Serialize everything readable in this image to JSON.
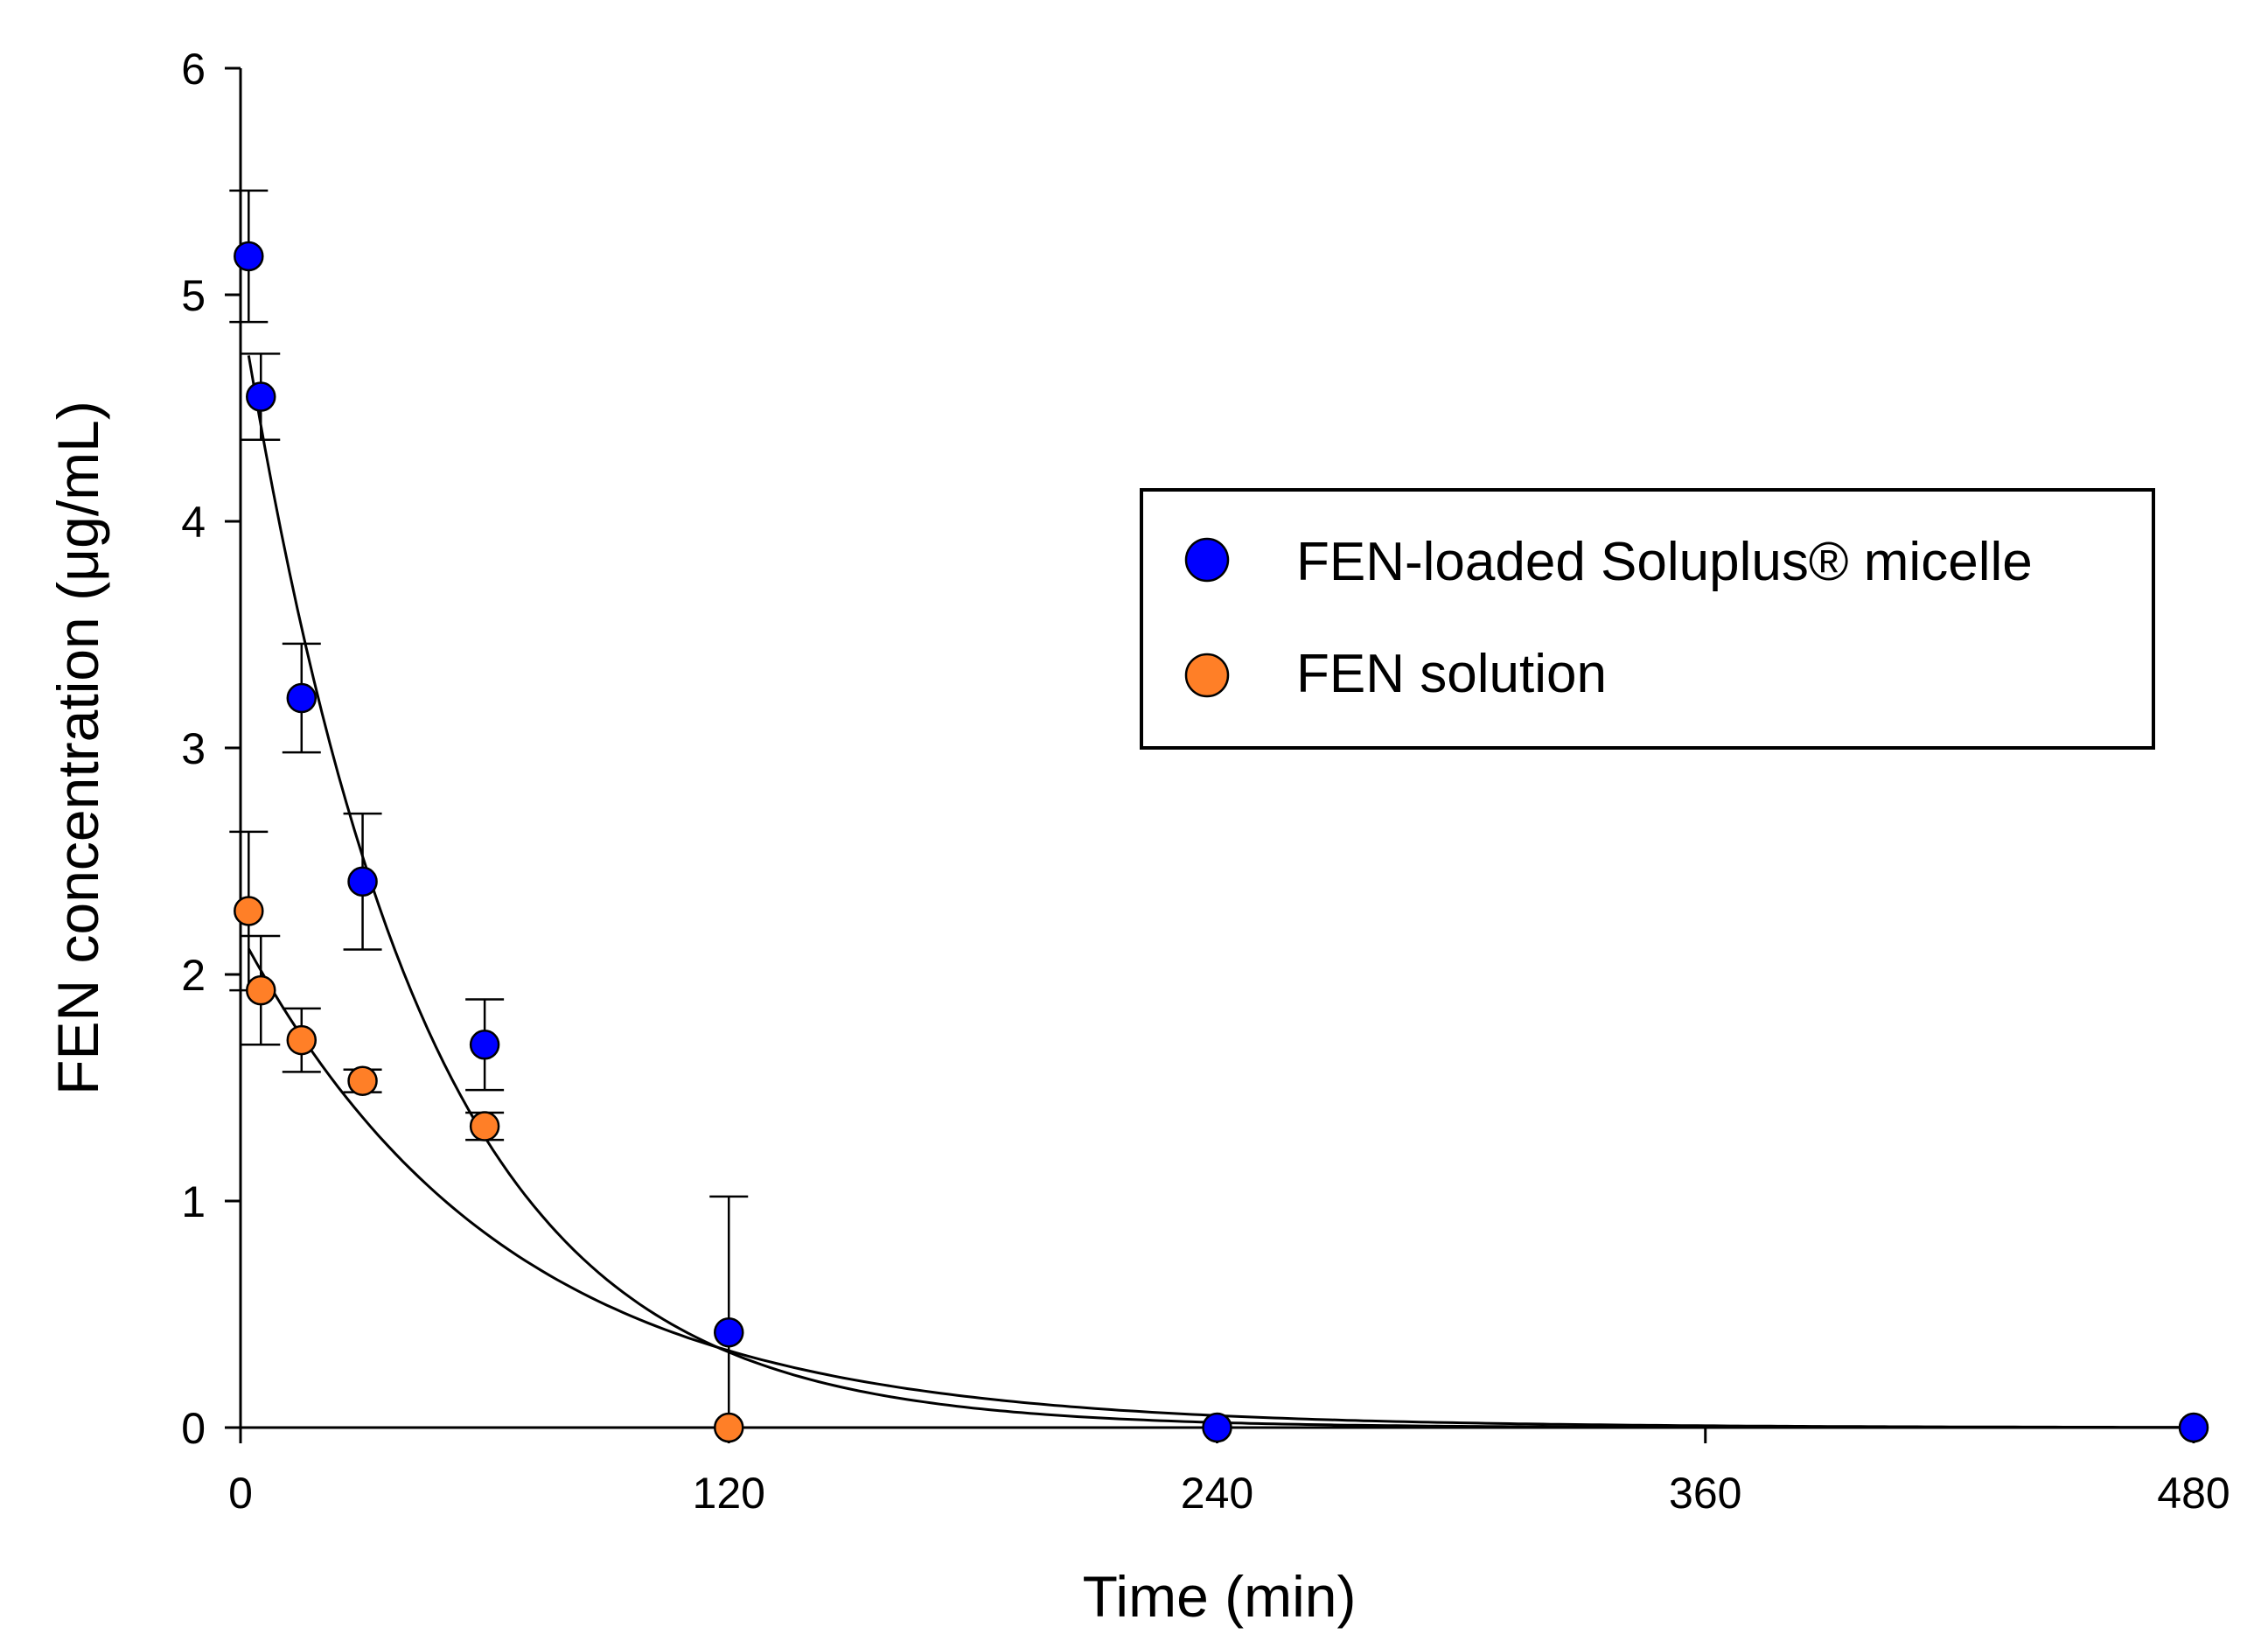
{
  "chart_data": {
    "type": "scatter",
    "title": "",
    "xlabel": "Time (min)",
    "ylabel": "FEN concentration (μg/mL)",
    "xlim": [
      0,
      480
    ],
    "ylim": [
      0,
      6
    ],
    "xticks": [
      0,
      120,
      240,
      360,
      480
    ],
    "yticks": [
      0,
      1,
      2,
      3,
      4,
      5,
      6
    ],
    "xtick_labels": [
      "0",
      "120",
      "240",
      "360",
      "480"
    ],
    "ytick_labels": [
      "0",
      "1",
      "2",
      "3",
      "4",
      "5",
      "6"
    ],
    "grid": false,
    "legend_position": "upper-right",
    "series": [
      {
        "name": "FEN-loaded Soluplus® micelle",
        "color": "#0000ff",
        "marker": "circle",
        "x": [
          2,
          5,
          15,
          30,
          60,
          120,
          240,
          480
        ],
        "y": [
          5.17,
          4.55,
          3.22,
          2.41,
          1.69,
          0.42,
          0.0,
          0.0
        ],
        "error_upper": [
          0.29,
          0.19,
          0.24,
          0.3,
          0.2,
          0.6,
          0,
          0
        ],
        "error_lower": [
          0.29,
          0.19,
          0.24,
          0.3,
          0.2,
          0.42,
          0,
          0
        ],
        "fit": {
          "model": "exponential decay",
          "a": 4.95,
          "k": 0.0225
        }
      },
      {
        "name": "FEN solution",
        "color": "#ff7f27",
        "marker": "circle",
        "x": [
          2,
          5,
          15,
          30,
          60,
          120
        ],
        "y": [
          2.28,
          1.93,
          1.71,
          1.53,
          1.33,
          0.0
        ],
        "error_upper": [
          0.35,
          0.24,
          0.14,
          0.05,
          0.06,
          0
        ],
        "error_lower": [
          0.35,
          0.24,
          0.14,
          0.05,
          0.06,
          0
        ],
        "fit": {
          "model": "exponential decay",
          "a": 2.18,
          "k": 0.0155
        }
      }
    ]
  }
}
